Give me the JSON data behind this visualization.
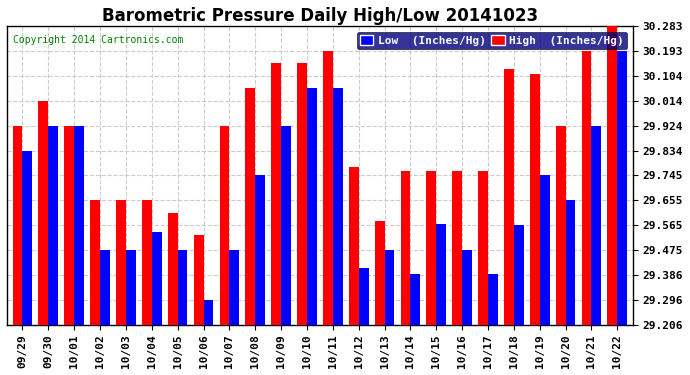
{
  "title": "Barometric Pressure Daily High/Low 20141023",
  "copyright": "Copyright 2014 Cartronics.com",
  "legend_low": "Low  (Inches/Hg)",
  "legend_high": "High  (Inches/Hg)",
  "dates": [
    "09/29",
    "09/30",
    "10/01",
    "10/02",
    "10/03",
    "10/04",
    "10/05",
    "10/06",
    "10/07",
    "10/08",
    "10/09",
    "10/10",
    "10/11",
    "10/12",
    "10/13",
    "10/14",
    "10/15",
    "10/16",
    "10/17",
    "10/18",
    "10/19",
    "10/20",
    "10/21",
    "10/22"
  ],
  "high": [
    29.924,
    30.014,
    29.924,
    29.655,
    29.655,
    29.655,
    29.61,
    29.53,
    29.924,
    30.06,
    30.15,
    30.15,
    30.193,
    29.775,
    29.58,
    29.76,
    29.76,
    29.76,
    29.76,
    30.13,
    30.11,
    29.924,
    30.193,
    30.283
  ],
  "low": [
    29.834,
    29.924,
    29.924,
    29.475,
    29.475,
    29.54,
    29.475,
    29.296,
    29.475,
    29.745,
    29.924,
    30.06,
    30.06,
    29.41,
    29.475,
    29.39,
    29.57,
    29.475,
    29.39,
    29.565,
    29.745,
    29.655,
    29.924,
    30.193
  ],
  "ylim_min": 29.206,
  "ylim_max": 30.283,
  "yticks": [
    29.206,
    29.296,
    29.386,
    29.475,
    29.565,
    29.655,
    29.745,
    29.834,
    29.924,
    30.014,
    30.104,
    30.193,
    30.283
  ],
  "bar_color_high": "#ff0000",
  "bar_color_low": "#0000ff",
  "bg_color": "#ffffff",
  "plot_bg": "#f0f0f0",
  "grid_color": "#cccccc",
  "title_fontsize": 12,
  "tick_fontsize": 8,
  "legend_fontsize": 8,
  "copyright_color": "#008000"
}
